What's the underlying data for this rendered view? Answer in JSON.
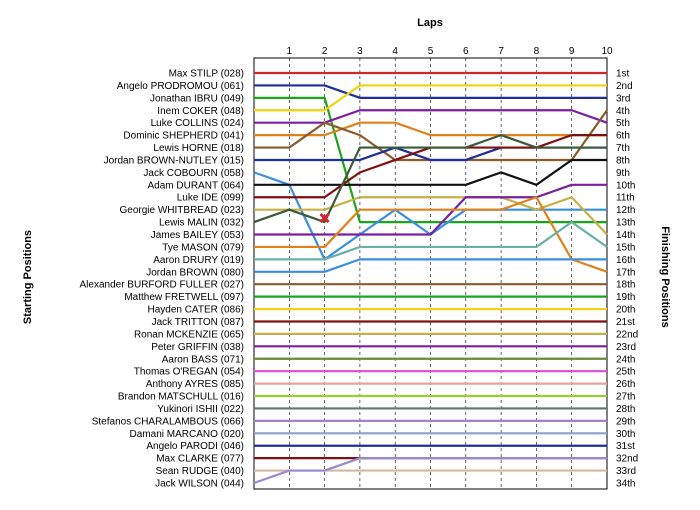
{
  "chart_data": {
    "type": "line",
    "xlabel": "Laps",
    "ylabel_left": "Starting Positions",
    "ylabel_right": "Finishing Positions",
    "x": [
      0,
      1,
      2,
      3,
      4,
      5,
      6,
      7,
      8,
      9,
      10
    ],
    "x_tick_labels": [
      "1",
      "2",
      "3",
      "4",
      "5",
      "6",
      "7",
      "8",
      "9",
      "10"
    ],
    "y_range": [
      1,
      34
    ],
    "finish_labels": [
      "1st",
      "2nd",
      "3rd",
      "4th",
      "5th",
      "6th",
      "7th",
      "8th",
      "9th",
      "10th",
      "11th",
      "12th",
      "13th",
      "14th",
      "15th",
      "16th",
      "17th",
      "18th",
      "19th",
      "20th",
      "21st",
      "22nd",
      "23rd",
      "24th",
      "25th",
      "26th",
      "27th",
      "28th",
      "29th",
      "30th",
      "31st",
      "32nd",
      "33rd",
      "34th"
    ],
    "retirement_marker": {
      "lap": 2,
      "position": 13,
      "symbol": "x"
    },
    "series": [
      {
        "name": "Max STILP (028)",
        "color": "#d4262a",
        "positions": [
          1,
          1,
          1,
          1,
          1,
          1,
          1,
          1,
          1,
          1,
          1
        ]
      },
      {
        "name": "Angelo PRODROMOU (061)",
        "color": "#1f2f98",
        "positions": [
          2,
          2,
          2,
          3,
          3,
          3,
          3,
          3,
          3,
          3,
          3
        ]
      },
      {
        "name": "Jonathan IBRU (049)",
        "color": "#1aa61a",
        "positions": [
          3,
          3,
          3,
          13,
          13,
          13,
          13,
          13,
          13,
          13,
          13
        ]
      },
      {
        "name": "Inem COKER (048)",
        "color": "#f2d20a",
        "positions": [
          4,
          4,
          4,
          2,
          2,
          2,
          2,
          2,
          2,
          2,
          2
        ]
      },
      {
        "name": "Luke COLLINS (024)",
        "color": "#7a1fa2",
        "positions": [
          5,
          5,
          5,
          4,
          4,
          4,
          4,
          4,
          4,
          4,
          5
        ]
      },
      {
        "name": "Dominic SHEPHERD (041)",
        "color": "#e0821a",
        "positions": [
          6,
          6,
          6,
          5,
          5,
          6,
          6,
          6,
          6,
          6,
          6
        ]
      },
      {
        "name": "Lewis HORNE (018)",
        "color": "#8b5a2b",
        "positions": [
          7,
          7,
          5,
          6,
          8,
          8,
          8,
          8,
          8,
          8,
          4
        ]
      },
      {
        "name": "Jordan BROWN-NUTLEY (015)",
        "color": "#1f2f98",
        "positions": [
          8,
          8,
          8,
          8,
          7,
          8,
          8,
          7,
          7,
          7,
          7
        ]
      },
      {
        "name": "Jack COBOURN (058)",
        "color": "#3a8ee0",
        "positions": [
          9,
          10,
          16,
          14,
          12,
          14,
          12,
          12,
          12,
          12,
          12
        ]
      },
      {
        "name": "Adam DURANT (064)",
        "color": "#111111",
        "positions": [
          10,
          10,
          10,
          10,
          10,
          10,
          10,
          9,
          10,
          8,
          8
        ]
      },
      {
        "name": "Luke IDE (099)",
        "color": "#7f1010",
        "positions": [
          11,
          11,
          11,
          9,
          8,
          7,
          7,
          7,
          7,
          6,
          6
        ]
      },
      {
        "name": "Georgie WHITBREAD (023)",
        "color": "#c8b048",
        "positions": [
          12,
          12,
          12,
          11,
          11,
          11,
          11,
          11,
          12,
          11,
          14
        ]
      },
      {
        "name": "Lewis MALIN (032)",
        "color": "#3a5a3a",
        "positions": [
          13,
          12,
          13,
          7,
          7,
          7,
          7,
          6,
          7,
          7,
          7
        ]
      },
      {
        "name": "James BAILEY (053)",
        "color": "#7a1fa2",
        "positions": [
          14,
          14,
          14,
          14,
          14,
          14,
          11,
          11,
          11,
          10,
          10
        ]
      },
      {
        "name": "Tye MASON (079)",
        "color": "#e0821a",
        "positions": [
          15,
          15,
          15,
          12,
          12,
          12,
          12,
          12,
          11,
          16,
          17
        ]
      },
      {
        "name": "Aaron DRURY (019)",
        "color": "#6ab0a8",
        "positions": [
          16,
          16,
          16,
          15,
          15,
          15,
          15,
          15,
          15,
          13,
          15
        ]
      },
      {
        "name": "Jordan BROWN (080)",
        "color": "#3a8ee0",
        "positions": [
          17,
          17,
          17,
          16,
          16,
          16,
          16,
          16,
          16,
          16,
          16
        ]
      },
      {
        "name": "Alexander BURFORD FULLER (027)",
        "color": "#8b5a2b",
        "positions": [
          18,
          18,
          18,
          18,
          18,
          18,
          18,
          18,
          18,
          18,
          18
        ]
      },
      {
        "name": "Matthew FRETWELL (097)",
        "color": "#1aa61a",
        "positions": [
          19,
          19,
          19,
          19,
          19,
          19,
          19,
          19,
          19,
          19,
          19
        ]
      },
      {
        "name": "Hayden CATER (086)",
        "color": "#f2d20a",
        "positions": [
          20,
          20,
          20,
          20,
          20,
          20,
          20,
          20,
          20,
          20,
          20
        ]
      },
      {
        "name": "Jack TRITTON (087)",
        "color": "#7f1010",
        "positions": [
          21,
          21,
          21,
          21,
          21,
          21,
          21,
          21,
          21,
          21,
          21
        ]
      },
      {
        "name": "Ronan MCKENZIE (065)",
        "color": "#c8b048",
        "positions": [
          22,
          22,
          22,
          22,
          22,
          22,
          22,
          22,
          22,
          22,
          22
        ]
      },
      {
        "name": "Peter GRIFFIN (038)",
        "color": "#7a1fa2",
        "positions": [
          23,
          23,
          23,
          23,
          23,
          23,
          23,
          23,
          23,
          23,
          23
        ]
      },
      {
        "name": "Aaron BASS (071)",
        "color": "#6a8a3a",
        "positions": [
          24,
          24,
          24,
          24,
          24,
          24,
          24,
          24,
          24,
          24,
          24
        ]
      },
      {
        "name": "Thomas O'REGAN (054)",
        "color": "#e048e0",
        "positions": [
          25,
          25,
          25,
          25,
          25,
          25,
          25,
          25,
          25,
          25,
          25
        ]
      },
      {
        "name": "Anthony AYRES (085)",
        "color": "#e6a2a2",
        "positions": [
          26,
          26,
          26,
          26,
          26,
          26,
          26,
          26,
          26,
          26,
          26
        ]
      },
      {
        "name": "Brandon MATSCHULL (016)",
        "color": "#9acd32",
        "positions": [
          27,
          27,
          27,
          27,
          27,
          27,
          27,
          27,
          27,
          27,
          27
        ]
      },
      {
        "name": "Yukinori ISHII (022)",
        "color": "#5a7a6a",
        "positions": [
          28,
          28,
          28,
          28,
          28,
          28,
          28,
          28,
          28,
          28,
          28
        ]
      },
      {
        "name": "Stefanos CHARALAMBOUS (066)",
        "color": "#a480c8",
        "positions": [
          29,
          29,
          29,
          29,
          29,
          29,
          29,
          29,
          29,
          29,
          29
        ]
      },
      {
        "name": "Damani MARCANO (020)",
        "color": "#8aa0c8",
        "positions": [
          30,
          30,
          30,
          30,
          30,
          30,
          30,
          30,
          30,
          30,
          30
        ]
      },
      {
        "name": "Angelo PARODI (046)",
        "color": "#1f2f98",
        "positions": [
          31,
          31,
          31,
          31,
          31,
          31,
          31,
          31,
          31,
          31,
          31
        ]
      },
      {
        "name": "Max CLARKE (077)",
        "color": "#7f1010",
        "positions": [
          32,
          32,
          32,
          32,
          32,
          32,
          32,
          32,
          32,
          32,
          32
        ]
      },
      {
        "name": "Sean RUDGE (040)",
        "color": "#d8b8a0",
        "positions": [
          33,
          33,
          33,
          33,
          33,
          33,
          33,
          33,
          33,
          33,
          33
        ]
      },
      {
        "name": "Jack WILSON (044)",
        "color": "#9a88d0",
        "positions": [
          34,
          33,
          33,
          32,
          32,
          32,
          32,
          32,
          32,
          32,
          32
        ]
      }
    ]
  }
}
